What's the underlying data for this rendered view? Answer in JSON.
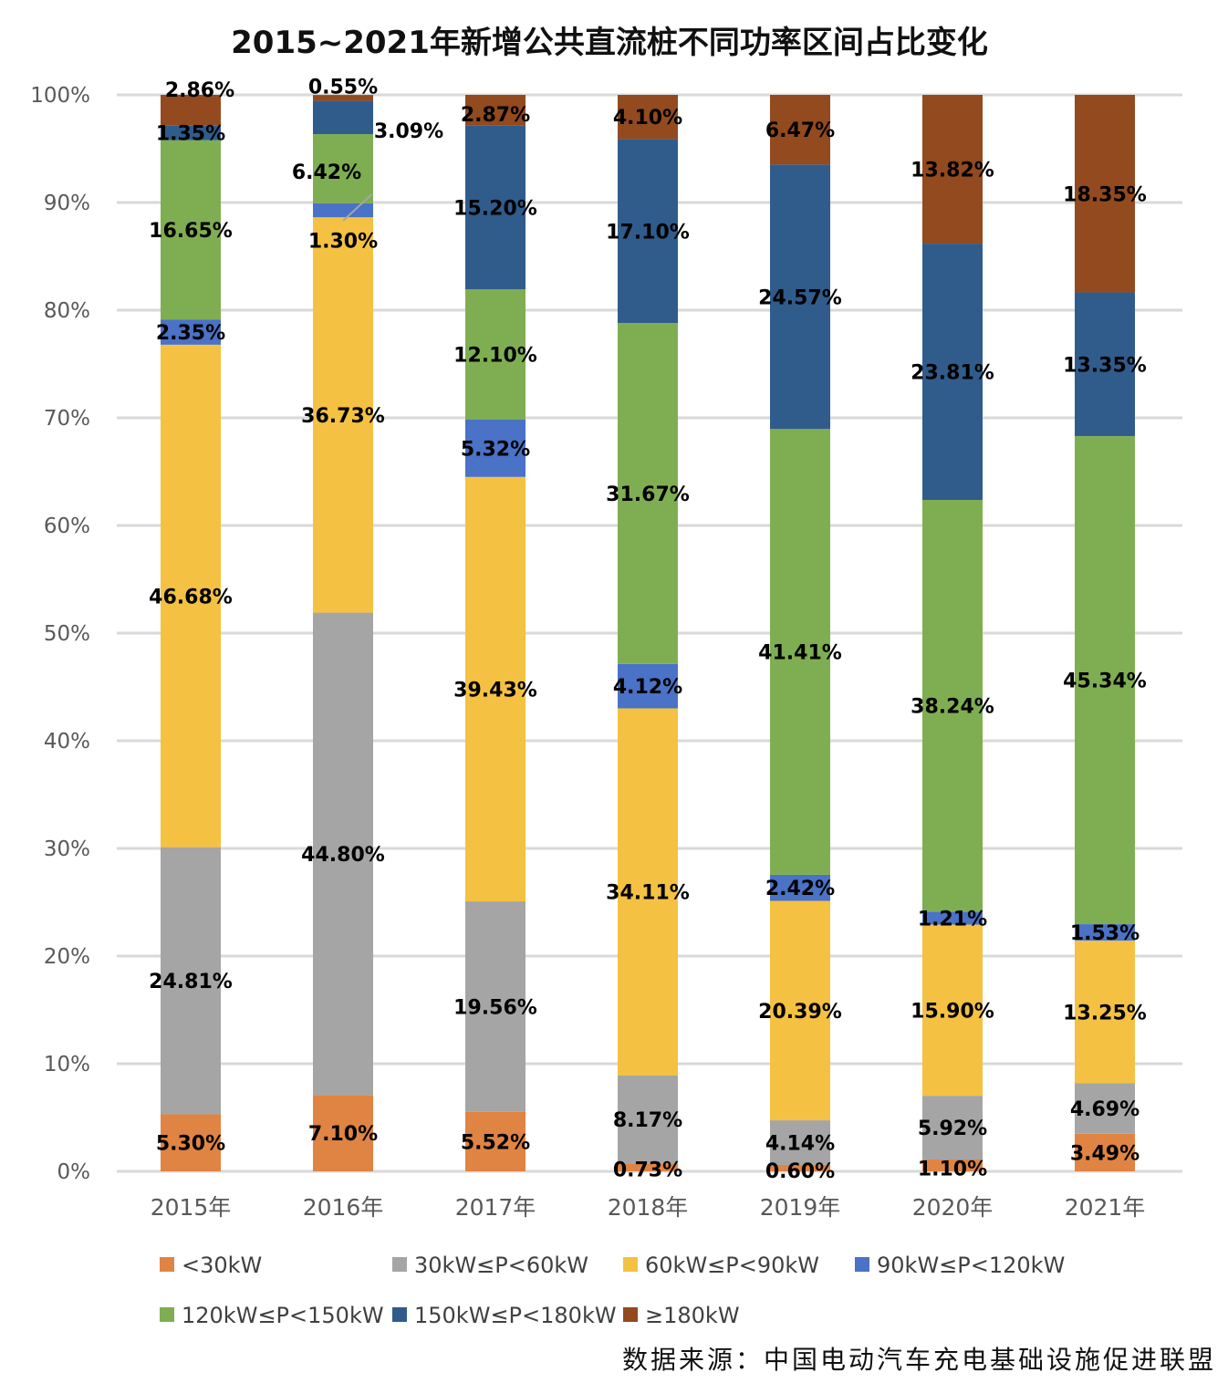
{
  "chart_data": {
    "type": "bar",
    "stacked": true,
    "title": "2015~2021年新增公共直流桩不同功率区间占比变化",
    "categories": [
      "2015年",
      "2016年",
      "2017年",
      "2018年",
      "2019年",
      "2020年",
      "2021年"
    ],
    "y_ticks": [
      "0%",
      "10%",
      "20%",
      "30%",
      "40%",
      "50%",
      "60%",
      "70%",
      "80%",
      "90%",
      "100%"
    ],
    "ylim": [
      0,
      100
    ],
    "grid": true,
    "legend_position": "bottom",
    "series": [
      {
        "name": "<30kW",
        "color": "#E08443",
        "values": [
          5.3,
          7.1,
          5.52,
          0.73,
          0.6,
          1.1,
          3.49
        ],
        "labels": [
          "5.30%",
          "7.10%",
          "5.52%",
          "0.73%",
          "0.60%",
          "1.10%",
          "3.49%"
        ]
      },
      {
        "name": "30kW≤P<60kW",
        "color": "#A5A5A5",
        "values": [
          24.81,
          44.8,
          19.56,
          8.17,
          4.14,
          5.92,
          4.69
        ],
        "labels": [
          "24.81%",
          "44.80%",
          "19.56%",
          "8.17%",
          "4.14%",
          "5.92%",
          "4.69%"
        ]
      },
      {
        "name": "60kW≤P<90kW",
        "color": "#F4C142",
        "values": [
          46.68,
          36.73,
          39.43,
          34.11,
          20.39,
          15.9,
          13.25
        ],
        "labels": [
          "46.68%",
          "36.73%",
          "39.43%",
          "34.11%",
          "20.39%",
          "15.90%",
          "13.25%"
        ]
      },
      {
        "name": "90kW≤P<120kW",
        "color": "#4A72C6",
        "values": [
          2.35,
          1.3,
          5.32,
          4.12,
          2.42,
          1.21,
          1.53
        ],
        "labels": [
          "2.35%",
          "1.30%",
          "5.32%",
          "4.12%",
          "2.42%",
          "1.21%",
          "1.53%"
        ]
      },
      {
        "name": "120kW≤P<150kW",
        "color": "#7FAE52",
        "values": [
          16.65,
          6.42,
          12.1,
          31.67,
          41.41,
          38.24,
          45.34
        ],
        "labels": [
          "16.65%",
          "6.42%",
          "12.10%",
          "31.67%",
          "41.41%",
          "38.24%",
          "45.34%"
        ]
      },
      {
        "name": "150kW≤P<180kW",
        "color": "#305C8C",
        "values": [
          1.35,
          3.09,
          15.2,
          17.1,
          24.57,
          23.81,
          13.35
        ],
        "labels": [
          "1.35%",
          "3.09%",
          "15.20%",
          "17.10%",
          "24.57%",
          "23.81%",
          "13.35%"
        ]
      },
      {
        "name": "≥180kW",
        "color": "#924A1E",
        "values": [
          2.86,
          0.55,
          2.87,
          4.1,
          6.47,
          13.82,
          18.35
        ],
        "labels": [
          "2.86%",
          "0.55%",
          "2.87%",
          "4.10%",
          "6.47%",
          "13.82%",
          "18.35%"
        ]
      }
    ]
  },
  "source_note": "数据来源：中国电动汽车充电基础设施促进联盟"
}
